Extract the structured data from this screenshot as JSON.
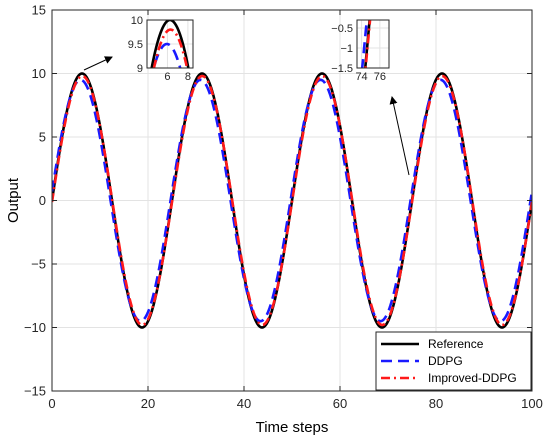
{
  "chart_data": {
    "type": "line",
    "xlabel": "Time steps",
    "ylabel": "Output",
    "xlim": [
      0,
      100
    ],
    "ylim": [
      -15,
      15
    ],
    "xticks": [
      0,
      20,
      40,
      60,
      80,
      100
    ],
    "yticks": [
      -15,
      -10,
      -5,
      0,
      5,
      10,
      15
    ],
    "grid": true,
    "legend_position": "bottom-right",
    "series": [
      {
        "name": "Reference",
        "color": "#000000",
        "style": "solid",
        "amplitude": 10,
        "period": 25,
        "phase": 0,
        "x": [
          0,
          5,
          10,
          15,
          20,
          25,
          30,
          35,
          40,
          45,
          50,
          55,
          60,
          65,
          70,
          75,
          80,
          85,
          90,
          95,
          100
        ],
        "y": [
          0,
          9.5,
          5.9,
          -5.9,
          -9.5,
          0,
          9.5,
          5.9,
          -5.9,
          -9.5,
          0,
          9.5,
          5.9,
          -5.9,
          -9.5,
          0,
          9.5,
          5.9,
          -5.9,
          -9.5,
          0
        ]
      },
      {
        "name": "DDPG",
        "color": "#1a1aff",
        "style": "dashed",
        "amplitude": 9.5,
        "period": 25,
        "phase": -0.3,
        "x": [
          0,
          5,
          10,
          15,
          20,
          25,
          30,
          35,
          40,
          45,
          50,
          55,
          60,
          65,
          70,
          75,
          80,
          85,
          90,
          95,
          100
        ],
        "y": [
          0,
          9.2,
          5.9,
          -5.3,
          -9.3,
          -0.7,
          9.2,
          5.9,
          -5.3,
          -9.3,
          -0.7,
          9.2,
          5.9,
          -5.3,
          -9.3,
          -0.7,
          9.2,
          5.9,
          -5.3,
          -9.3,
          -0.7
        ]
      },
      {
        "name": "Improved-DDPG",
        "color": "#ff1a1a",
        "style": "dashdot",
        "amplitude": 9.8,
        "period": 25,
        "phase": 0.05,
        "x": [
          0,
          5,
          10,
          15,
          20,
          25,
          30,
          35,
          40,
          45,
          50,
          55,
          60,
          65,
          70,
          75,
          80,
          85,
          90,
          95,
          100
        ],
        "y": [
          0,
          9.3,
          5.8,
          -5.8,
          -9.3,
          0.1,
          9.3,
          5.8,
          -5.8,
          -9.3,
          0.1,
          9.3,
          5.8,
          -5.8,
          -9.3,
          0.1,
          9.3,
          5.8,
          -5.8,
          -9.3,
          0.1
        ]
      }
    ],
    "insets": [
      {
        "xlim": [
          4,
          8.5
        ],
        "ylim": [
          9,
          10
        ],
        "xticks": [
          6,
          8
        ],
        "yticks": [
          9,
          9.5,
          10
        ]
      },
      {
        "xlim": [
          73.5,
          77
        ],
        "ylim": [
          -1.5,
          -0.3
        ],
        "xticks": [
          74,
          76
        ],
        "yticks": [
          -1.5,
          -1,
          -0.5
        ]
      }
    ]
  }
}
